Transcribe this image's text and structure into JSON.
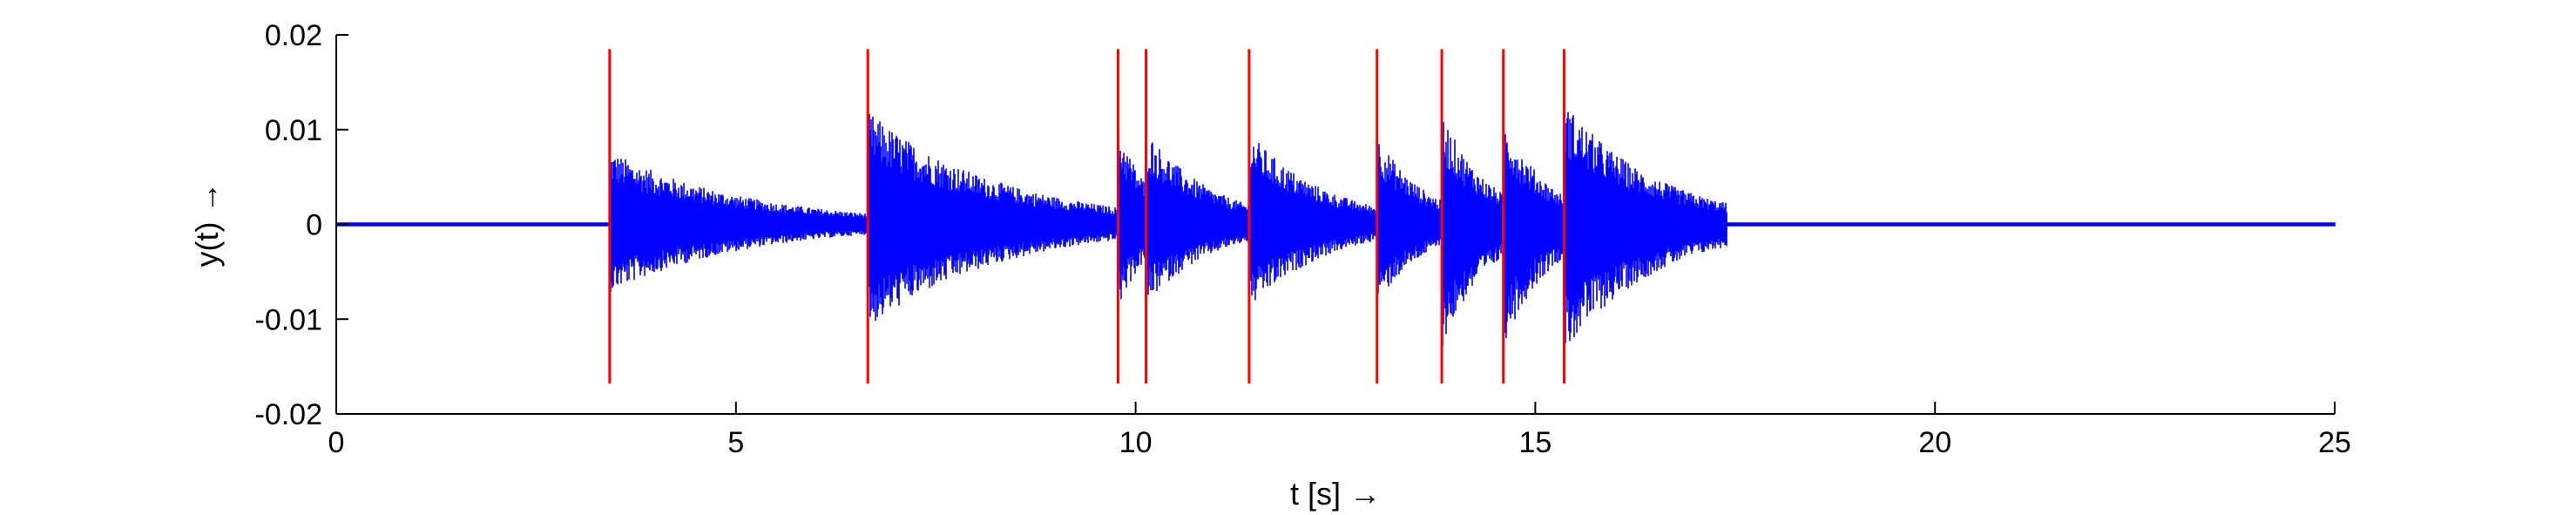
{
  "chart_data": {
    "type": "line",
    "xlabel": "t [s] →",
    "ylabel": "y(t)  →",
    "xlim": [
      0,
      25
    ],
    "ylim": [
      -0.02,
      0.02
    ],
    "x_ticks": [
      0,
      5,
      10,
      15,
      20,
      25
    ],
    "y_ticks": [
      0.02,
      0.01,
      0,
      -0.01,
      -0.02
    ],
    "x_tick_labels": [
      "0",
      "5",
      "10",
      "15",
      "20",
      "25"
    ],
    "y_tick_labels": [
      "0.02",
      "0.01",
      "0",
      "-0.01",
      "-0.02"
    ],
    "grid": false,
    "legend": "none",
    "series": [
      {
        "kind": "waveform",
        "color": "#0000ff",
        "noise_floor": 0.0002,
        "segments": [
          {
            "start": 3.42,
            "end": 6.65,
            "amp_pos": 0.0078,
            "amp_neg": 0.0072
          },
          {
            "start": 6.65,
            "end": 9.78,
            "amp_pos": 0.012,
            "amp_neg": 0.011
          },
          {
            "start": 9.78,
            "end": 10.13,
            "amp_pos": 0.0105,
            "amp_neg": 0.009
          },
          {
            "start": 10.13,
            "end": 11.42,
            "amp_pos": 0.01,
            "amp_neg": 0.0085
          },
          {
            "start": 11.42,
            "end": 13.02,
            "amp_pos": 0.0098,
            "amp_neg": 0.009
          },
          {
            "start": 13.02,
            "end": 13.83,
            "amp_pos": 0.0095,
            "amp_neg": 0.0085
          },
          {
            "start": 13.83,
            "end": 14.6,
            "amp_pos": 0.0118,
            "amp_neg": 0.013
          },
          {
            "start": 14.6,
            "end": 15.36,
            "amp_pos": 0.0112,
            "amp_neg": 0.0128
          },
          {
            "start": 15.36,
            "end": 17.4,
            "amp_pos": 0.013,
            "amp_neg": 0.0135
          }
        ]
      }
    ],
    "onset_markers": {
      "color": "#ff0000",
      "y_range": [
        -0.0168,
        0.0185
      ],
      "x": [
        3.42,
        6.65,
        9.78,
        10.13,
        11.42,
        13.02,
        13.83,
        14.6,
        15.36
      ]
    }
  }
}
